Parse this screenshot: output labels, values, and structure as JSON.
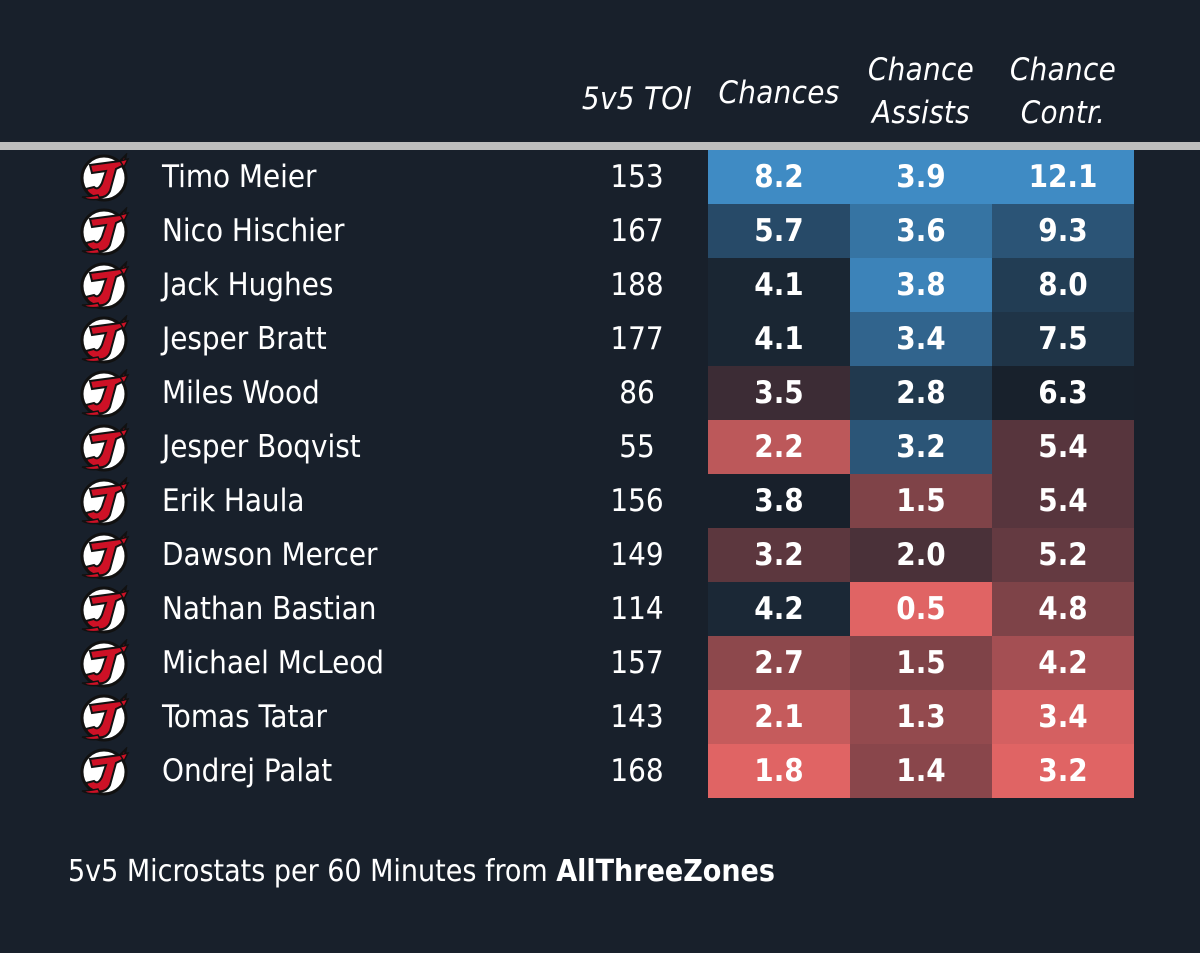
{
  "chart_data": {
    "type": "table",
    "columns": [
      "5v5 TOI",
      "Chances",
      "Chance Assists",
      "Chance Contr."
    ],
    "header": {
      "toi": "5v5 TOI",
      "chances": "Chances",
      "assists_line1": "Chance",
      "assists_line2": "Assists",
      "contr_line1": "Chance",
      "contr_line2": "Contr."
    },
    "rows": [
      {
        "name": "Timo Meier",
        "toi": "153",
        "chances": "8.2",
        "assists": "3.9",
        "contr": "12.1"
      },
      {
        "name": "Nico Hischier",
        "toi": "167",
        "chances": "5.7",
        "assists": "3.6",
        "contr": "9.3"
      },
      {
        "name": "Jack Hughes",
        "toi": "188",
        "chances": "4.1",
        "assists": "3.8",
        "contr": "8.0"
      },
      {
        "name": "Jesper Bratt",
        "toi": "177",
        "chances": "4.1",
        "assists": "3.4",
        "contr": "7.5"
      },
      {
        "name": "Miles Wood",
        "toi": "86",
        "chances": "3.5",
        "assists": "2.8",
        "contr": "6.3"
      },
      {
        "name": "Jesper Boqvist",
        "toi": "55",
        "chances": "2.2",
        "assists": "3.2",
        "contr": "5.4"
      },
      {
        "name": "Erik Haula",
        "toi": "156",
        "chances": "3.8",
        "assists": "1.5",
        "contr": "5.4"
      },
      {
        "name": "Dawson Mercer",
        "toi": "149",
        "chances": "3.2",
        "assists": "2.0",
        "contr": "5.2"
      },
      {
        "name": "Nathan Bastian",
        "toi": "114",
        "chances": "4.2",
        "assists": "0.5",
        "contr": "4.8"
      },
      {
        "name": "Michael McLeod",
        "toi": "157",
        "chances": "2.7",
        "assists": "1.5",
        "contr": "4.2"
      },
      {
        "name": "Tomas Tatar",
        "toi": "143",
        "chances": "2.1",
        "assists": "1.3",
        "contr": "3.4"
      },
      {
        "name": "Ondrej Palat",
        "toi": "168",
        "chances": "1.8",
        "assists": "1.4",
        "contr": "3.2"
      }
    ],
    "colors": {
      "background": "#18202b",
      "high": "#3f8bc4",
      "mid": "#18202b",
      "low": "#e06464",
      "rule": "#bdbdbd",
      "logo_red": "#ce1126",
      "logo_black": "#111111"
    },
    "icon": "new-jersey-devils-logo-icon"
  },
  "footer": {
    "text": "5v5 Microstats per 60 Minutes from ",
    "source": "AllThreeZones"
  }
}
